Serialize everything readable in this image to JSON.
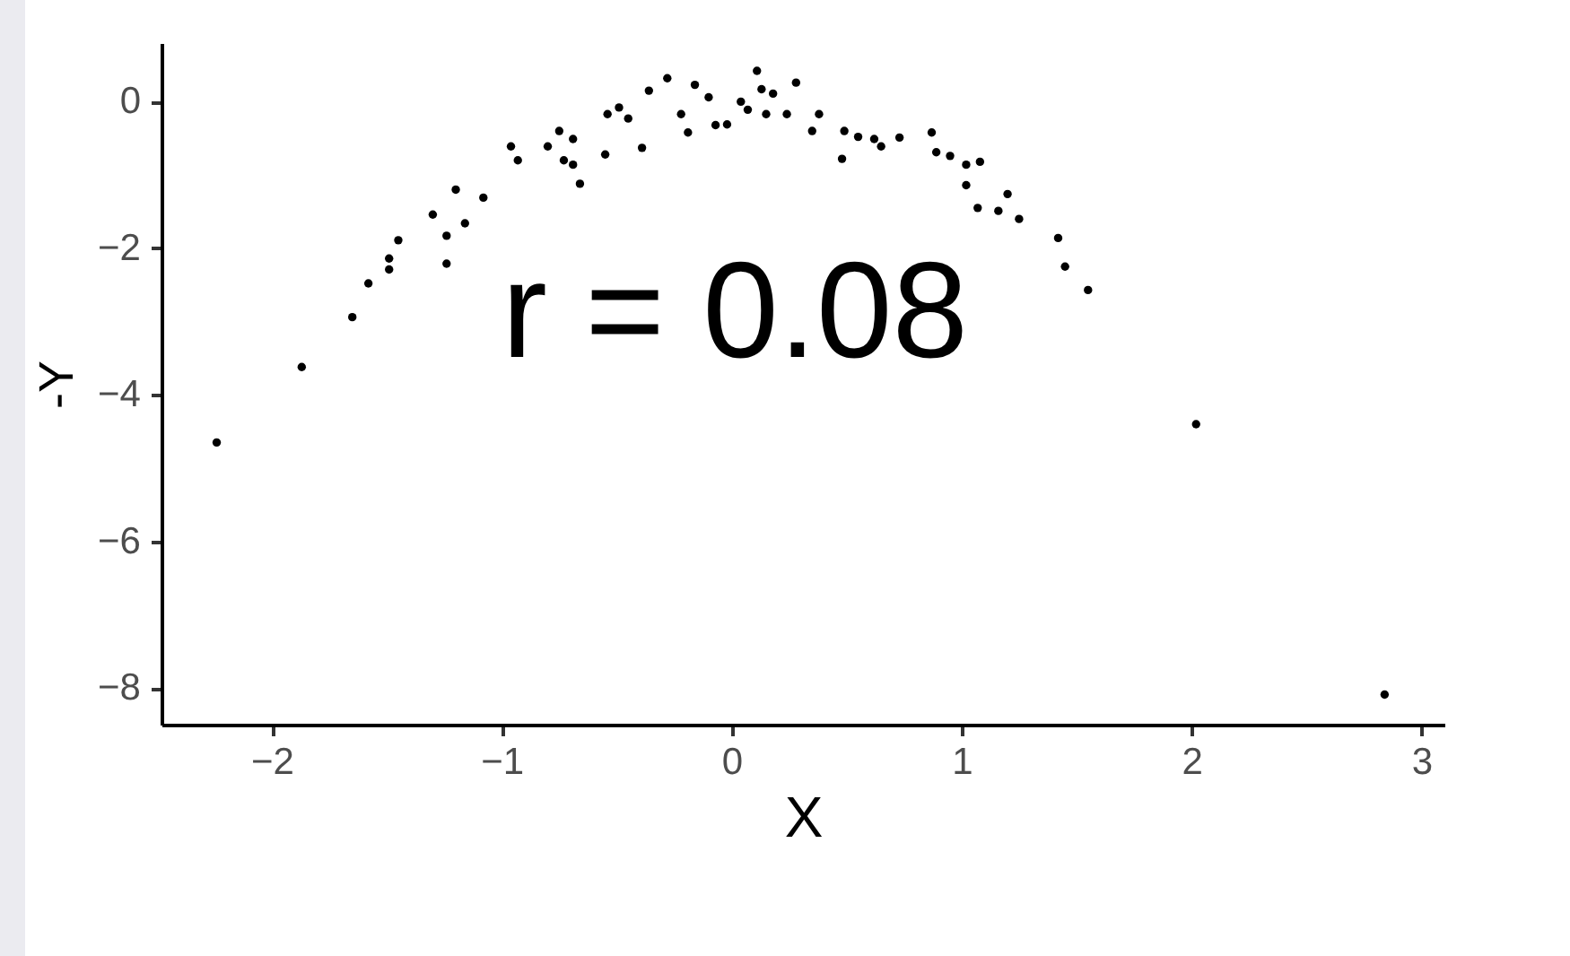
{
  "chart_data": {
    "type": "scatter",
    "xlabel": "X",
    "ylabel": "-Y",
    "marker": "circle",
    "annotations": [
      "r =  0.08"
    ],
    "xlim": [
      -2.48,
      3.1
    ],
    "xticks": [
      -2,
      -1,
      0,
      1,
      2,
      3
    ],
    "ylim": [
      -8.5,
      0.8
    ],
    "yticks": [
      -8,
      -6,
      -4,
      -2,
      0
    ],
    "series": [
      {
        "color": "#000000",
        "x": [
          -2.24,
          -1.87,
          -1.65,
          2.02,
          2.84,
          -1.58,
          -1.49,
          -1.49,
          -1.45,
          -1.3,
          -1.24,
          -1.24,
          -1.2,
          -1.16,
          -1.08,
          -0.96,
          -0.93,
          -0.8,
          -0.75,
          -0.73,
          -0.69,
          -0.66,
          -0.69,
          -0.55,
          -0.54,
          -0.49,
          -0.45,
          -0.39,
          -0.36,
          -0.28,
          -0.22,
          -0.19,
          -0.16,
          -0.1,
          -0.07,
          -0.02,
          0.04,
          0.07,
          0.11,
          0.13,
          0.15,
          0.18,
          0.24,
          0.28,
          0.35,
          0.38,
          0.49,
          0.48,
          0.55,
          0.62,
          0.65,
          0.73,
          0.87,
          0.89,
          0.95,
          1.02,
          1.08,
          1.02,
          1.07,
          1.16,
          1.2,
          1.25,
          1.42,
          1.45,
          1.55
        ],
        "values": [
          -4.65,
          -3.62,
          -2.94,
          -4.4,
          -8.09,
          -2.48,
          -2.29,
          -2.14,
          -1.89,
          -1.54,
          -2.21,
          -1.83,
          -1.2,
          -1.66,
          -1.31,
          -0.61,
          -0.8,
          -0.61,
          -0.4,
          -0.8,
          -0.51,
          -1.12,
          -0.86,
          -0.72,
          -0.17,
          -0.08,
          -0.23,
          -0.63,
          0.15,
          0.32,
          -0.17,
          -0.42,
          0.23,
          0.06,
          -0.32,
          -0.31,
          0,
          -0.11,
          0.42,
          0.17,
          -0.17,
          0.11,
          -0.17,
          0.26,
          -0.4,
          -0.17,
          -0.4,
          -0.78,
          -0.48,
          -0.51,
          -0.61,
          -0.49,
          -0.42,
          -0.69,
          -0.74,
          -0.86,
          -0.82,
          -1.14,
          -1.45,
          -1.49,
          -1.26,
          -1.6,
          -1.86,
          -2.25,
          -2.57
        ]
      }
    ]
  }
}
